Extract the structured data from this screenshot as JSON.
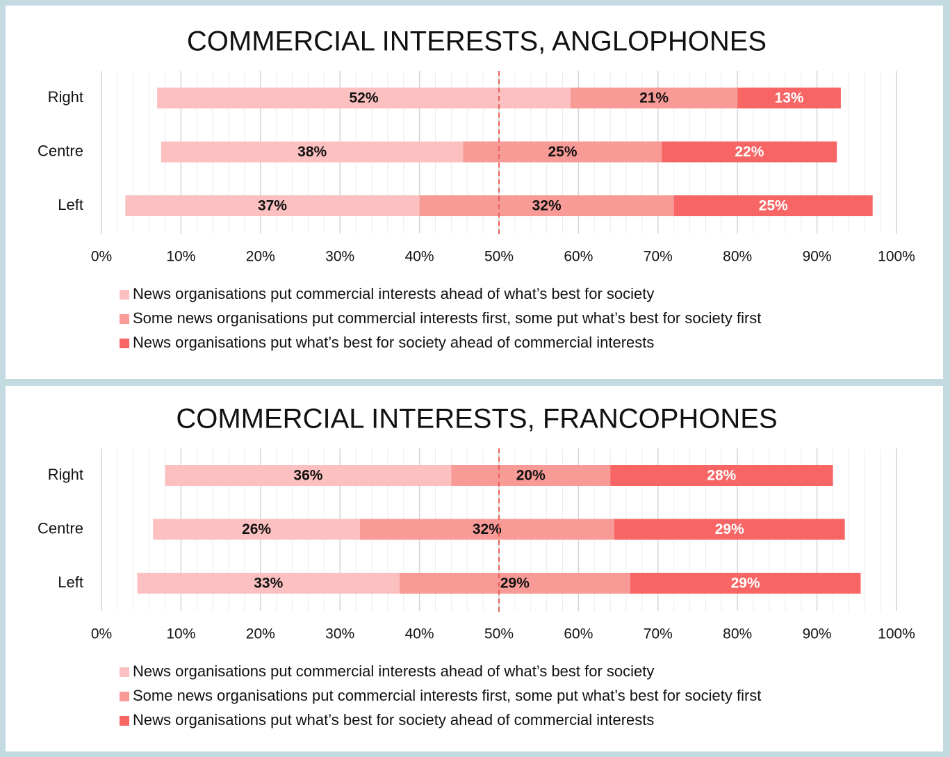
{
  "chart_data": [
    {
      "type": "bar",
      "title": "COMMERCIAL INTERESTS, ANGLOPHONES",
      "categories": [
        "Right",
        "Centre",
        "Left"
      ],
      "series": [
        {
          "name": "News organisations put commercial interests ahead of what’s best for society",
          "color": "#fcc0c0",
          "values": [
            52,
            38,
            37
          ],
          "value_labels": [
            "52%",
            "38%",
            "37%"
          ]
        },
        {
          "name": "Some news organisations put commercial interests first, some put what’s best for society first",
          "color": "#f89a96",
          "values": [
            21,
            25,
            32
          ],
          "value_labels": [
            "21%",
            "25%",
            "32%"
          ]
        },
        {
          "name": "News organisations put what’s best for society ahead of commercial interests",
          "color": "#f76565",
          "values": [
            13,
            22,
            25
          ],
          "value_labels": [
            "13%",
            "22%",
            "25%"
          ]
        }
      ],
      "xlim": [
        0,
        100
      ],
      "xticks": [
        {
          "value": 0,
          "label": "0%"
        },
        {
          "value": 10,
          "label": "10%"
        },
        {
          "value": 20,
          "label": "20%"
        },
        {
          "value": 30,
          "label": "30%"
        },
        {
          "value": 40,
          "label": "40%"
        },
        {
          "value": 50,
          "label": "50%"
        },
        {
          "value": 60,
          "label": "60%"
        },
        {
          "value": 70,
          "label": "70%"
        },
        {
          "value": 80,
          "label": "80%"
        },
        {
          "value": 90,
          "label": "90%"
        },
        {
          "value": 100,
          "label": "100%"
        }
      ],
      "grid": true,
      "legend": "bottom"
    },
    {
      "type": "bar",
      "title": "COMMERCIAL INTERESTS, FRANCOPHONES",
      "categories": [
        "Right",
        "Centre",
        "Left"
      ],
      "series": [
        {
          "name": "News organisations put commercial interests ahead of what’s best for society",
          "color": "#fcc0c0",
          "values": [
            36,
            26,
            33
          ],
          "value_labels": [
            "36%",
            "26%",
            "33%"
          ]
        },
        {
          "name": "Some news organisations put commercial interests first, some put what’s best for society first",
          "color": "#f89a96",
          "values": [
            20,
            32,
            29
          ],
          "value_labels": [
            "20%",
            "32%",
            "29%"
          ]
        },
        {
          "name": "News organisations put what’s best for society ahead of commercial interests",
          "color": "#f76565",
          "values": [
            28,
            29,
            29
          ],
          "value_labels": [
            "28%",
            "29%",
            "29%"
          ]
        }
      ],
      "xlim": [
        0,
        100
      ],
      "xticks": [
        {
          "value": 0,
          "label": "0%"
        },
        {
          "value": 10,
          "label": "10%"
        },
        {
          "value": 20,
          "label": "20%"
        },
        {
          "value": 30,
          "label": "30%"
        },
        {
          "value": 40,
          "label": "40%"
        },
        {
          "value": 50,
          "label": "50%"
        },
        {
          "value": 60,
          "label": "60%"
        },
        {
          "value": 70,
          "label": "70%"
        },
        {
          "value": 80,
          "label": "80%"
        },
        {
          "value": 90,
          "label": "90%"
        },
        {
          "value": 100,
          "label": "100%"
        }
      ],
      "grid": true,
      "legend": "bottom"
    }
  ]
}
